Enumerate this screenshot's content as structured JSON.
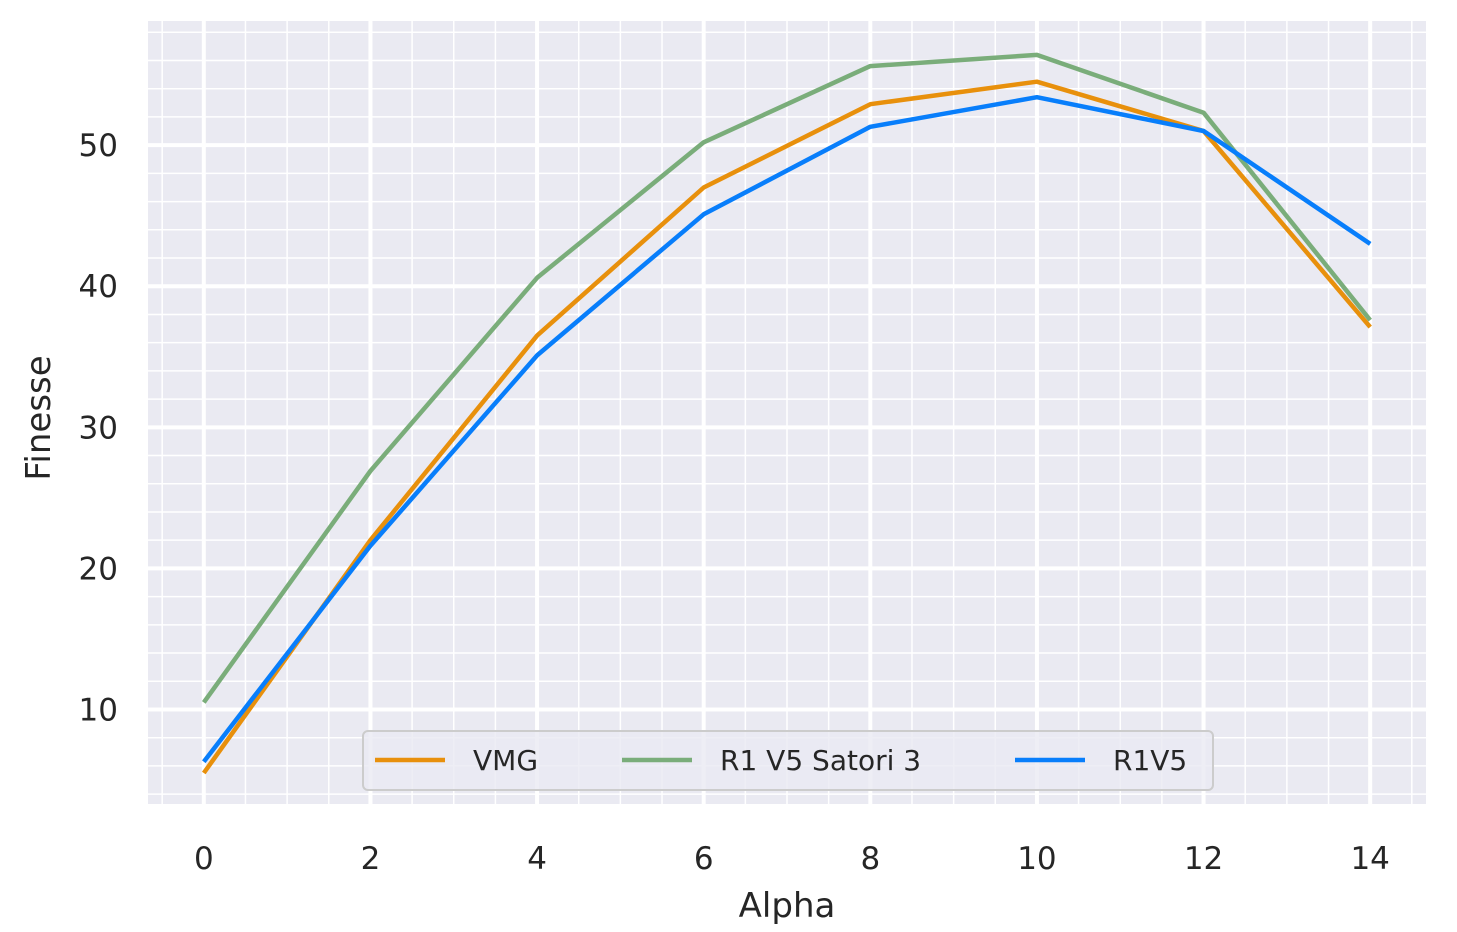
{
  "chart_data": {
    "type": "line",
    "xlabel": "Alpha",
    "ylabel": "Finesse",
    "x": [
      0,
      2,
      4,
      6,
      8,
      10,
      12,
      14
    ],
    "xlim": [
      -0.67,
      14.67
    ],
    "ylim": [
      3.3,
      58.8
    ],
    "xticks": [
      0,
      2,
      4,
      6,
      8,
      10,
      12,
      14
    ],
    "yticks": [
      10,
      20,
      30,
      40,
      50
    ],
    "grid": true,
    "minor_grid": true,
    "background": "#eaeaf2",
    "legend_position": "lower center",
    "series": [
      {
        "name": "VMG",
        "color": "#e8900c",
        "values": [
          5.5,
          22.0,
          36.5,
          47.0,
          52.9,
          54.5,
          51.0,
          37.1
        ]
      },
      {
        "name": "R1 V5 Satori 3",
        "color": "#7aad7a",
        "values": [
          10.5,
          26.9,
          40.6,
          50.2,
          55.6,
          56.4,
          52.3,
          37.6
        ]
      },
      {
        "name": "R1V5",
        "color": "#087efb",
        "values": [
          6.3,
          21.6,
          35.1,
          45.1,
          51.3,
          53.4,
          51.0,
          43.0
        ]
      }
    ]
  }
}
